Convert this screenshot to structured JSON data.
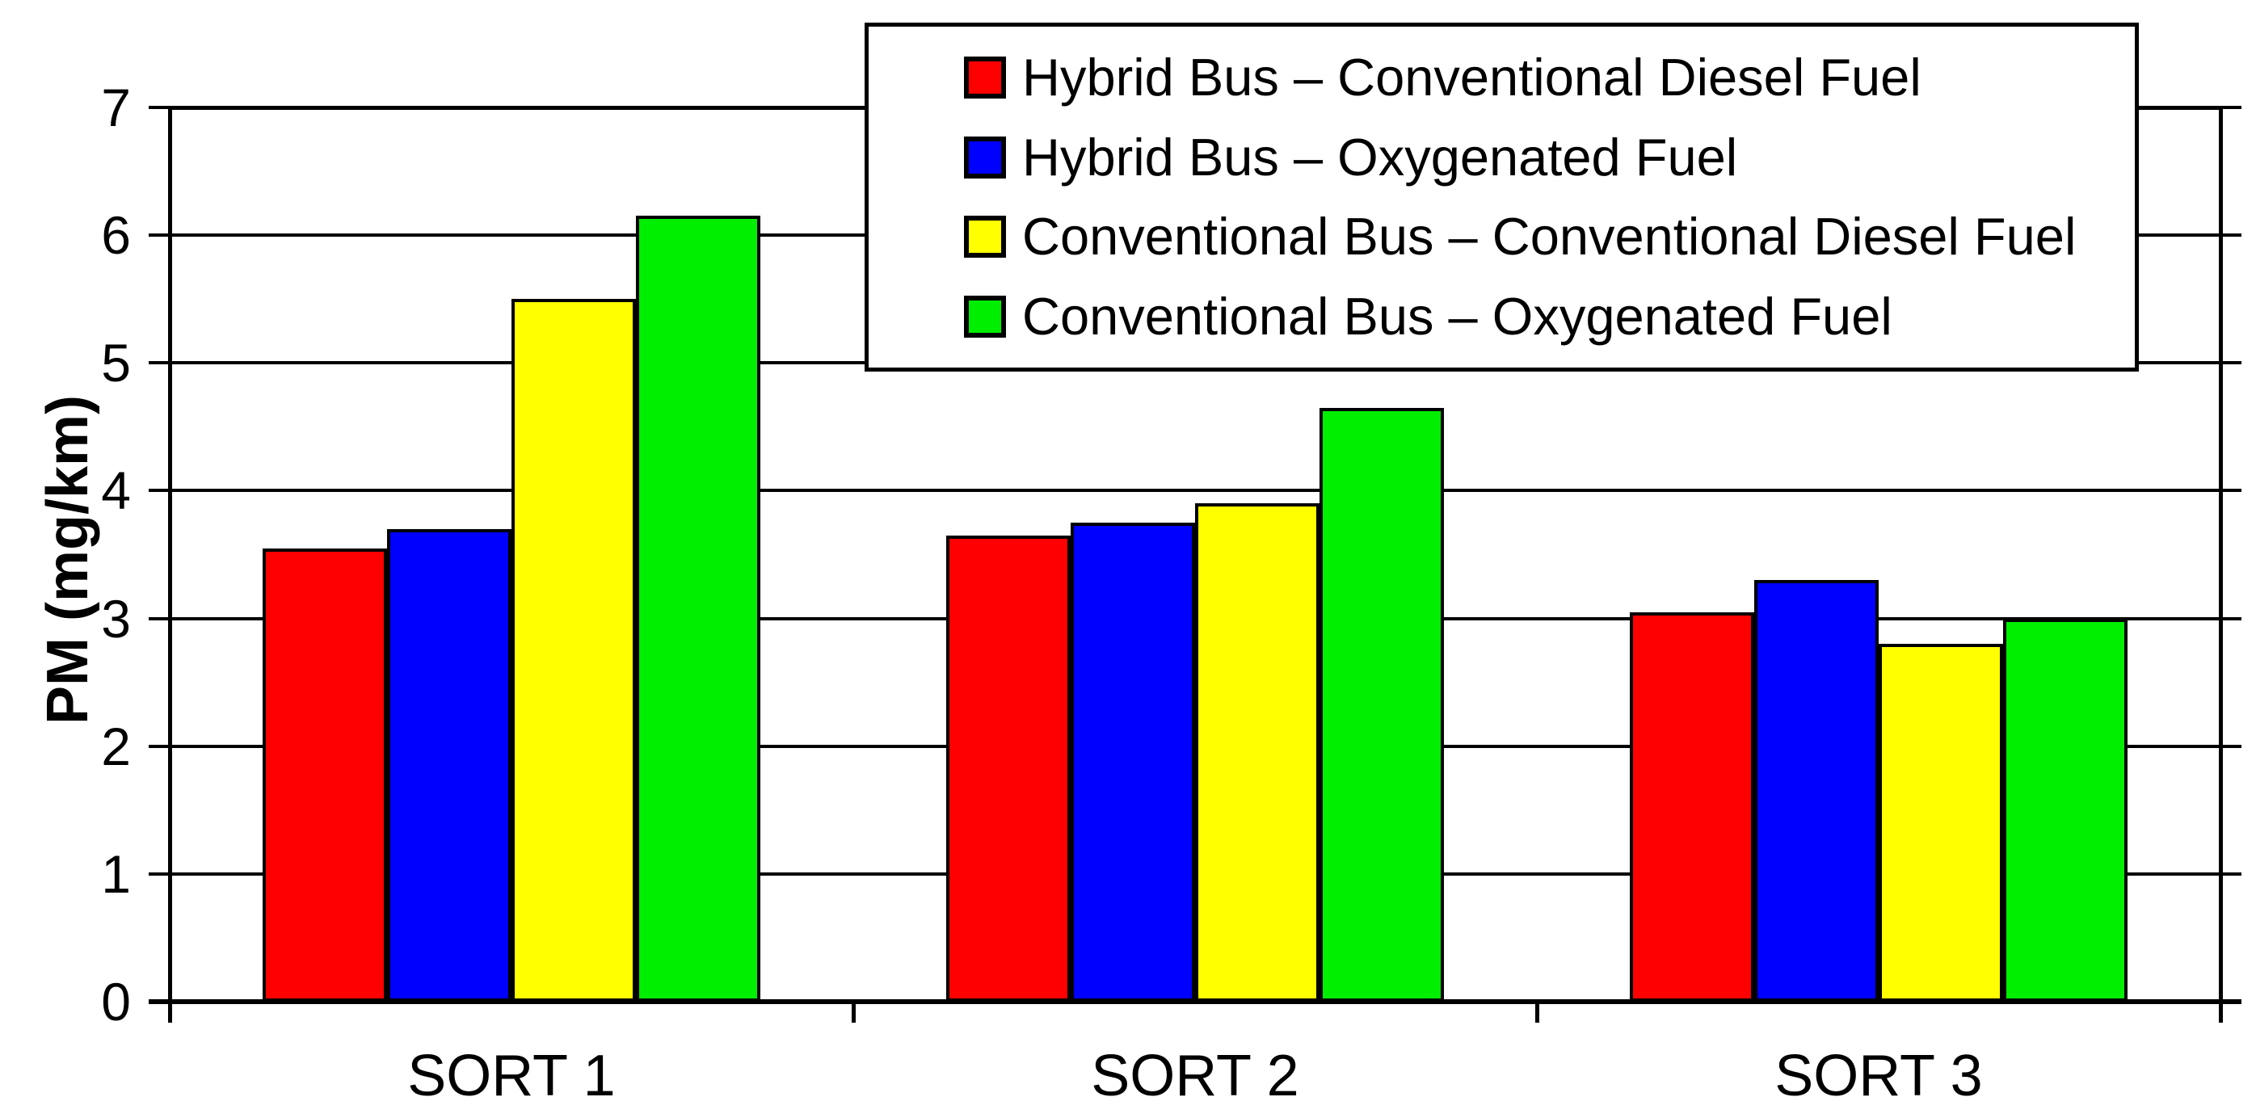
{
  "chart_data": {
    "type": "bar",
    "title": "",
    "ylabel": "PM (mg/km)",
    "xlabel": "",
    "categories": [
      "SORT 1",
      "SORT 2",
      "SORT 3"
    ],
    "series": [
      {
        "name": "Hybrid Bus – Conventional Diesel Fuel",
        "color": "#FF0000",
        "values": [
          3.55,
          3.65,
          3.05
        ]
      },
      {
        "name": "Hybrid Bus – Oxygenated Fuel",
        "color": "#0000FF",
        "values": [
          3.7,
          3.75,
          3.3
        ]
      },
      {
        "name": "Conventional Bus – Conventional Diesel Fuel",
        "color": "#FFFF00",
        "values": [
          5.5,
          3.9,
          2.8
        ]
      },
      {
        "name": "Conventional Bus – Oxygenated Fuel",
        "color": "#00EE00",
        "values": [
          6.15,
          4.65,
          3.0
        ]
      }
    ],
    "ylim": [
      0,
      7
    ],
    "yticks": [
      0,
      1,
      2,
      3,
      4,
      5,
      6,
      7
    ],
    "grid": true,
    "grid_color": "#000000",
    "bar_border_color": "#000000",
    "background_color": "#FFFFFF",
    "legend_position": "top-right"
  }
}
